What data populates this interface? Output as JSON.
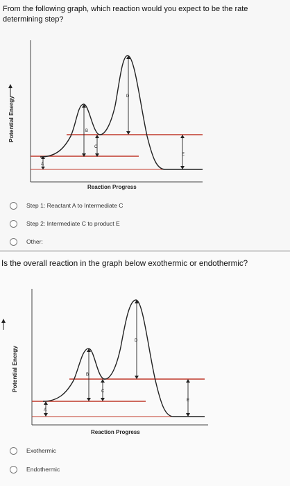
{
  "q1": {
    "text": "From the following graph, which reaction would you expect to be the rate determining step?",
    "graph": {
      "ylabel": "Potential Energy",
      "xlabel": "Reaction Progress",
      "labels": {
        "A": "A",
        "B": "B",
        "C": "C",
        "D": "D",
        "E": "E"
      }
    },
    "options": [
      {
        "label": "Step 1: Reactant A to Intermediate C"
      },
      {
        "label": "Step 2: Intermediate C to product E"
      },
      {
        "label": "Other:"
      }
    ]
  },
  "q2": {
    "text": "Is the overall reaction in the graph below exothermic or endothermic?",
    "graph": {
      "ylabel": "Potential Energy",
      "xlabel": "Reaction Progress",
      "labels": {
        "A": "A",
        "B": "B",
        "C": "C",
        "D": "D",
        "E": "E"
      }
    },
    "options": [
      {
        "label": "Exothermic"
      },
      {
        "label": "Endothermic"
      }
    ]
  },
  "colors": {
    "level_line": "#c0392b",
    "curve": "#222222",
    "radio_border": "#7a7a7a"
  }
}
